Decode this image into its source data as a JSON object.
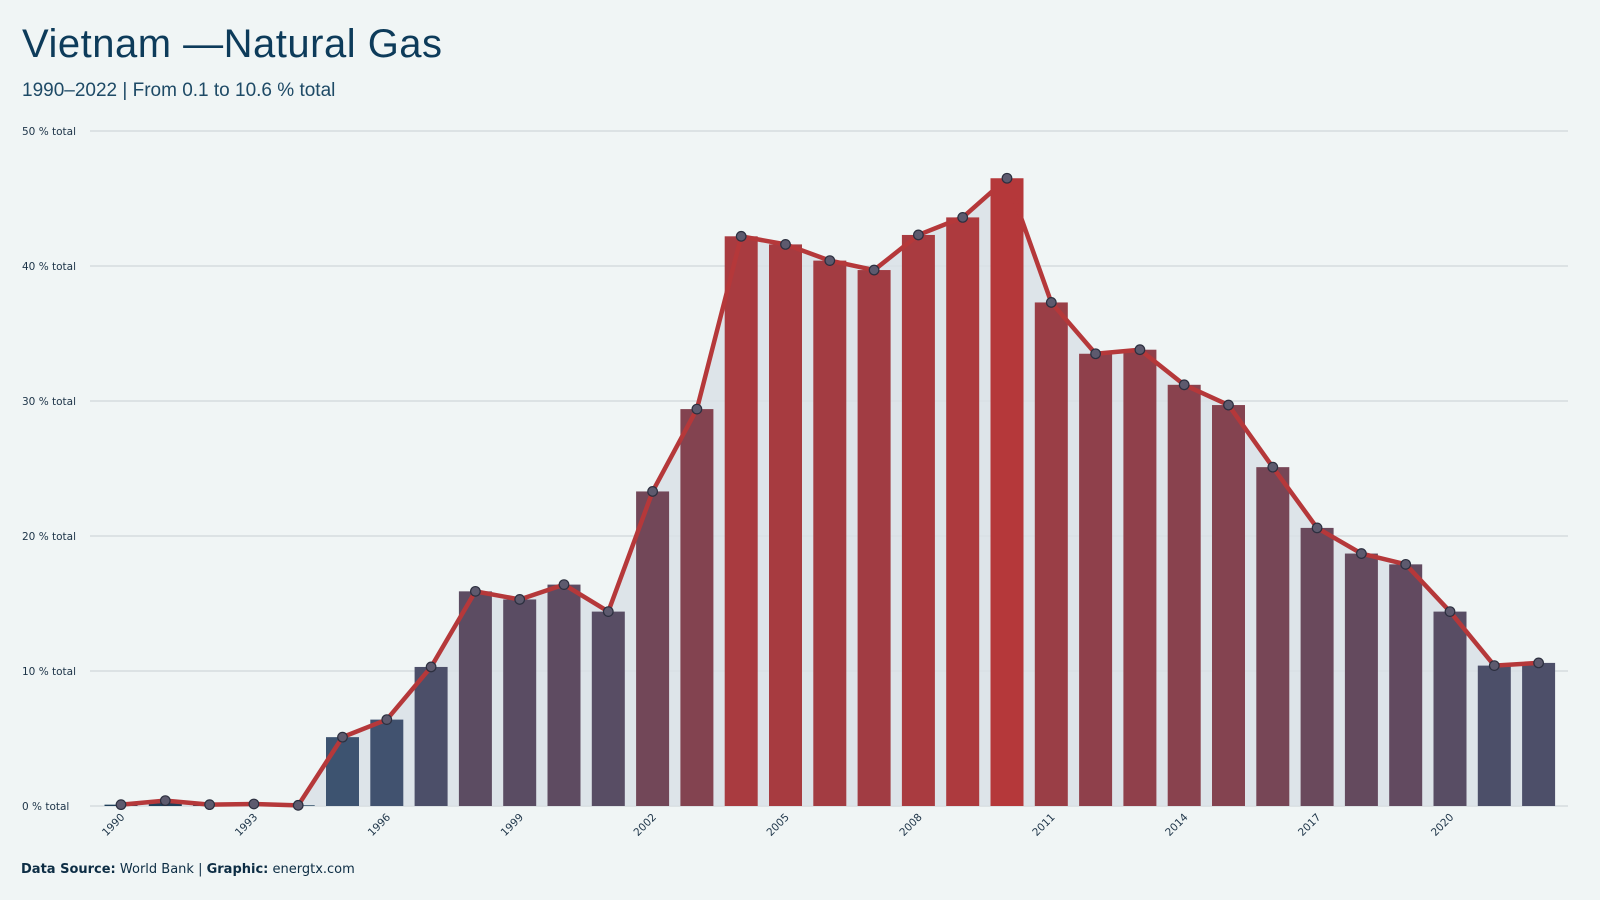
{
  "header": {
    "title": "Vietnam —Natural Gas",
    "subtitle": "1990–2022 | From 0.1 to 10.6 % total"
  },
  "footer": {
    "source_label": "Data Source:",
    "source_value": " World Bank | ",
    "graphic_label": "Graphic:",
    "graphic_value": " energtx.com"
  },
  "chart_data": {
    "type": "bar",
    "title": "Vietnam —Natural Gas",
    "subtitle": "1990–2022 | From 0.1 to 10.6 % total",
    "xlabel": "",
    "ylabel": "",
    "ylim": [
      0,
      50
    ],
    "yticks": [
      "0 % total",
      "10 % total",
      "20 % total",
      "30 % total",
      "40 % total",
      "50 % total"
    ],
    "xticks": [
      "1990",
      "1993",
      "1996",
      "1999",
      "2002",
      "2005",
      "2008",
      "2011",
      "2014",
      "2017",
      "2020"
    ],
    "grid": true,
    "line_overlay": true,
    "line_color": "#b5383a",
    "color_low": "#2e5677",
    "color_high": "#b5383a",
    "categories": [
      "1990",
      "1991",
      "1992",
      "1993",
      "1994",
      "1995",
      "1996",
      "1997",
      "1998",
      "1999",
      "2000",
      "2001",
      "2002",
      "2003",
      "2004",
      "2005",
      "2006",
      "2007",
      "2008",
      "2009",
      "2010",
      "2011",
      "2012",
      "2013",
      "2014",
      "2015",
      "2016",
      "2017",
      "2018",
      "2019",
      "2020",
      "2021",
      "2022"
    ],
    "values": [
      0.1,
      0.4,
      0.1,
      0.15,
      0.05,
      5.1,
      6.4,
      10.3,
      15.9,
      15.3,
      16.4,
      14.4,
      23.3,
      29.4,
      42.2,
      41.6,
      40.4,
      39.7,
      42.3,
      43.6,
      46.5,
      37.3,
      33.5,
      33.8,
      31.2,
      29.7,
      25.1,
      20.6,
      18.7,
      17.9,
      14.4,
      10.4,
      10.6
    ]
  }
}
